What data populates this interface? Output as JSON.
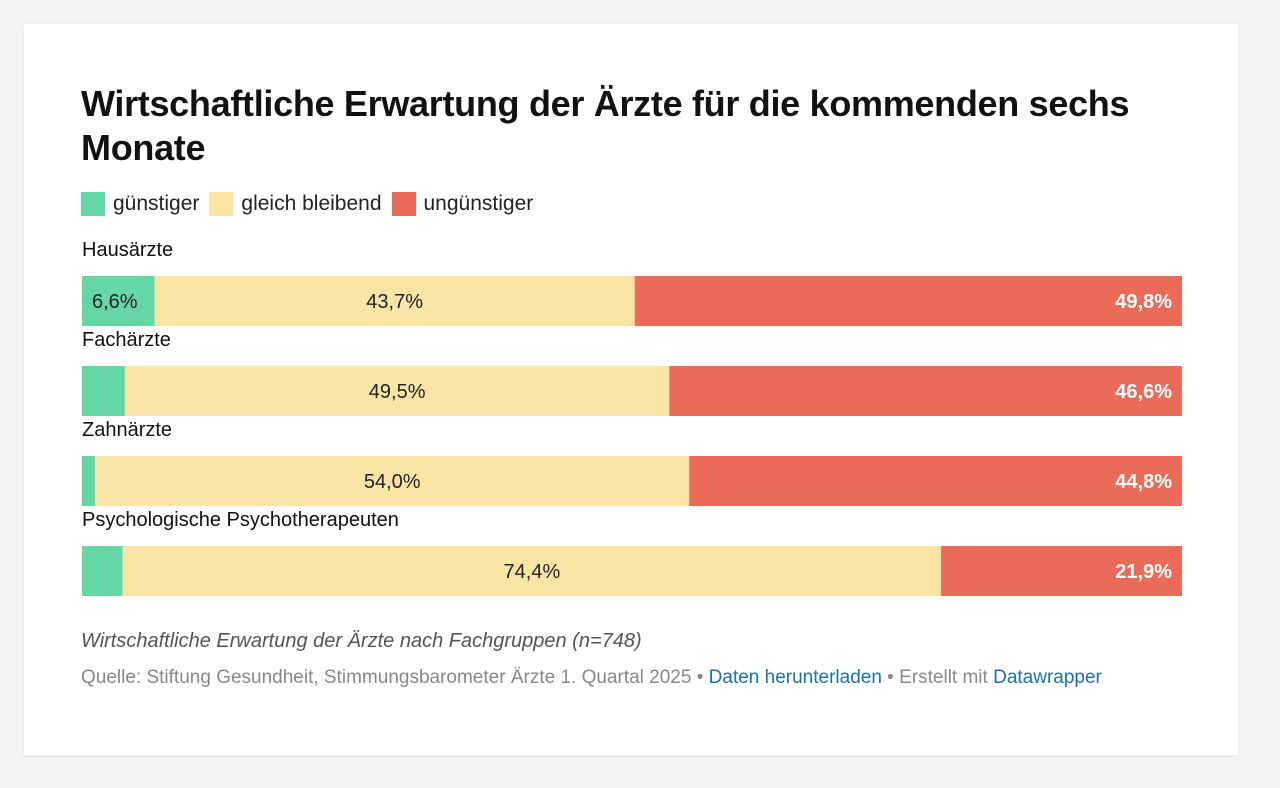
{
  "title": "Wirtschaftliche Erwartung der Ärzte für die kommenden sechs Monate",
  "notes": "Wirtschaftliche Erwartung der Ärzte nach Fachgruppen (n=748)",
  "footer": {
    "source": "Quelle: Stiftung Gesundheit, Stimmungsbarometer Ärzte 1. Quartal 2025",
    "separator": " • ",
    "download_link": "Daten herunterladen",
    "created_with": "Erstellt mit",
    "tool_link": "Datawrapper"
  },
  "chart_data": {
    "type": "bar",
    "orientation": "horizontal-stacked-100",
    "title": "Wirtschaftliche Erwartung der Ärzte für die kommenden sechs Monate",
    "legend_position": "top-left",
    "categories": [
      "Hausärzte",
      "Fachärzte",
      "Zahnärzte",
      "Psychologische Psychotherapeuten"
    ],
    "series": [
      {
        "name": "günstiger",
        "color": "#65d6a6",
        "values": [
          6.6,
          3.9,
          1.2,
          3.7
        ],
        "labels": [
          "6,6%",
          "",
          "",
          ""
        ]
      },
      {
        "name": "gleich bleibend",
        "color": "#fbe5a5",
        "values": [
          43.7,
          49.5,
          54.0,
          74.4
        ],
        "labels": [
          "43,7%",
          "49,5%",
          "54,0%",
          "74,4%"
        ]
      },
      {
        "name": "ungünstiger",
        "color": "#ea6b58",
        "values": [
          49.8,
          46.6,
          44.8,
          21.9
        ],
        "labels": [
          "49,8%",
          "46,6%",
          "44,8%",
          "21,9%"
        ]
      }
    ]
  }
}
